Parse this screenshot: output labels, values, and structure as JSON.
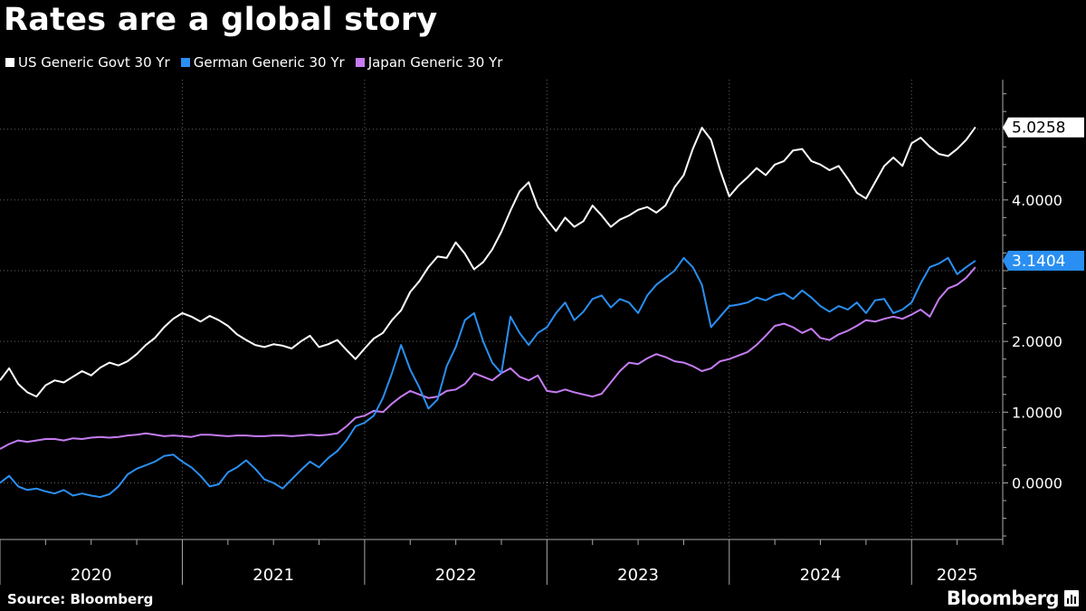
{
  "title": "Rates are a global story",
  "source": "Source: Bloomberg",
  "brand": "Bloomberg",
  "legend": [
    {
      "label": "US Generic Govt 30 Yr",
      "color": "#ffffff"
    },
    {
      "label": "German Generic 30 Yr",
      "color": "#2a8ff2"
    },
    {
      "label": "Japan Generic 30 Yr",
      "color": "#c57cf2"
    }
  ],
  "chart_data": {
    "type": "line",
    "title": "Rates are a global story",
    "xlabel": "",
    "ylabel": "",
    "xlim": [
      2020.0,
      2025.5
    ],
    "ylim": [
      -0.8,
      5.7
    ],
    "x_ticks": [
      "2020",
      "2021",
      "2022",
      "2023",
      "2024",
      "2025"
    ],
    "y_ticks": [
      "0.0000",
      "1.0000",
      "2.0000",
      "4.0000"
    ],
    "y_tick_values": [
      0,
      1,
      2,
      4
    ],
    "last_value_labels": [
      {
        "series": "US Generic Govt 30 Yr",
        "value": 5.0258,
        "text": "5.0258"
      },
      {
        "series": "German Generic 30 Yr",
        "value": 3.1404,
        "text": "3.1404"
      }
    ],
    "grid": true,
    "series": [
      {
        "name": "US Generic Govt 30 Yr",
        "color": "#ffffff",
        "x": [
          2020.0,
          2020.05,
          2020.1,
          2020.15,
          2020.2,
          2020.25,
          2020.3,
          2020.35,
          2020.4,
          2020.45,
          2020.5,
          2020.55,
          2020.6,
          2020.65,
          2020.7,
          2020.75,
          2020.8,
          2020.85,
          2020.9,
          2020.95,
          2021.0,
          2021.05,
          2021.1,
          2021.15,
          2021.2,
          2021.25,
          2021.3,
          2021.35,
          2021.4,
          2021.45,
          2021.5,
          2021.55,
          2021.6,
          2021.65,
          2021.7,
          2021.75,
          2021.8,
          2021.85,
          2021.9,
          2021.95,
          2022.0,
          2022.05,
          2022.1,
          2022.15,
          2022.2,
          2022.25,
          2022.3,
          2022.35,
          2022.4,
          2022.45,
          2022.5,
          2022.55,
          2022.6,
          2022.65,
          2022.7,
          2022.75,
          2022.8,
          2022.85,
          2022.9,
          2022.95,
          2023.0,
          2023.05,
          2023.1,
          2023.15,
          2023.2,
          2023.25,
          2023.3,
          2023.35,
          2023.4,
          2023.45,
          2023.5,
          2023.55,
          2023.6,
          2023.65,
          2023.7,
          2023.75,
          2023.8,
          2023.85,
          2023.9,
          2023.95,
          2024.0,
          2024.05,
          2024.1,
          2024.15,
          2024.2,
          2024.25,
          2024.3,
          2024.35,
          2024.4,
          2024.45,
          2024.5,
          2024.55,
          2024.6,
          2024.65,
          2024.7,
          2024.75,
          2024.8,
          2024.85,
          2024.9,
          2024.95,
          2025.0,
          2025.05,
          2025.1,
          2025.15,
          2025.2,
          2025.25,
          2025.3,
          2025.35
        ],
        "y": [
          1.45,
          1.62,
          1.4,
          1.28,
          1.22,
          1.38,
          1.45,
          1.42,
          1.5,
          1.58,
          1.52,
          1.63,
          1.7,
          1.66,
          1.72,
          1.82,
          1.95,
          2.05,
          2.2,
          2.32,
          2.4,
          2.35,
          2.28,
          2.36,
          2.3,
          2.22,
          2.1,
          2.02,
          1.95,
          1.92,
          1.96,
          1.94,
          1.9,
          2.0,
          2.08,
          1.92,
          1.96,
          2.02,
          1.88,
          1.75,
          1.9,
          2.04,
          2.12,
          2.3,
          2.44,
          2.7,
          2.85,
          3.05,
          3.2,
          3.18,
          3.4,
          3.24,
          3.02,
          3.12,
          3.3,
          3.55,
          3.85,
          4.12,
          4.25,
          3.9,
          3.72,
          3.56,
          3.75,
          3.62,
          3.7,
          3.92,
          3.78,
          3.62,
          3.72,
          3.78,
          3.86,
          3.9,
          3.82,
          3.92,
          4.18,
          4.35,
          4.72,
          5.02,
          4.85,
          4.42,
          4.05,
          4.2,
          4.32,
          4.45,
          4.35,
          4.5,
          4.55,
          4.7,
          4.72,
          4.55,
          4.5,
          4.42,
          4.48,
          4.3,
          4.1,
          4.02,
          4.25,
          4.48,
          4.6,
          4.48,
          4.8,
          4.88,
          4.75,
          4.65,
          4.62,
          4.72,
          4.85,
          5.03
        ]
      },
      {
        "name": "German Generic 30 Yr",
        "color": "#2a8ff2",
        "x": [
          2020.0,
          2020.05,
          2020.1,
          2020.15,
          2020.2,
          2020.25,
          2020.3,
          2020.35,
          2020.4,
          2020.45,
          2020.5,
          2020.55,
          2020.6,
          2020.65,
          2020.7,
          2020.75,
          2020.8,
          2020.85,
          2020.9,
          2020.95,
          2021.0,
          2021.05,
          2021.1,
          2021.15,
          2021.2,
          2021.25,
          2021.3,
          2021.35,
          2021.4,
          2021.45,
          2021.5,
          2021.55,
          2021.6,
          2021.65,
          2021.7,
          2021.75,
          2021.8,
          2021.85,
          2021.9,
          2021.95,
          2022.0,
          2022.05,
          2022.1,
          2022.15,
          2022.2,
          2022.25,
          2022.3,
          2022.35,
          2022.4,
          2022.45,
          2022.5,
          2022.55,
          2022.6,
          2022.65,
          2022.7,
          2022.75,
          2022.8,
          2022.85,
          2022.9,
          2022.95,
          2023.0,
          2023.05,
          2023.1,
          2023.15,
          2023.2,
          2023.25,
          2023.3,
          2023.35,
          2023.4,
          2023.45,
          2023.5,
          2023.55,
          2023.6,
          2023.65,
          2023.7,
          2023.75,
          2023.8,
          2023.85,
          2023.9,
          2023.95,
          2024.0,
          2024.05,
          2024.1,
          2024.15,
          2024.2,
          2024.25,
          2024.3,
          2024.35,
          2024.4,
          2024.45,
          2024.5,
          2024.55,
          2024.6,
          2024.65,
          2024.7,
          2024.75,
          2024.8,
          2024.85,
          2024.9,
          2024.95,
          2025.0,
          2025.05,
          2025.1,
          2025.15,
          2025.2,
          2025.25,
          2025.3,
          2025.35
        ],
        "y": [
          0.0,
          0.1,
          -0.05,
          -0.1,
          -0.08,
          -0.12,
          -0.15,
          -0.1,
          -0.18,
          -0.15,
          -0.18,
          -0.2,
          -0.16,
          -0.05,
          0.12,
          0.2,
          0.25,
          0.3,
          0.38,
          0.4,
          0.3,
          0.22,
          0.1,
          -0.05,
          -0.02,
          0.15,
          0.22,
          0.32,
          0.2,
          0.05,
          0.0,
          -0.08,
          0.05,
          0.18,
          0.3,
          0.22,
          0.35,
          0.45,
          0.6,
          0.8,
          0.85,
          0.95,
          1.2,
          1.55,
          1.95,
          1.6,
          1.35,
          1.05,
          1.18,
          1.65,
          1.92,
          2.3,
          2.4,
          2.0,
          1.7,
          1.55,
          2.35,
          2.12,
          1.95,
          2.12,
          2.2,
          2.4,
          2.55,
          2.3,
          2.42,
          2.6,
          2.65,
          2.48,
          2.6,
          2.55,
          2.4,
          2.65,
          2.8,
          2.9,
          3.0,
          3.18,
          3.05,
          2.8,
          2.2,
          2.35,
          2.5,
          2.52,
          2.55,
          2.62,
          2.58,
          2.65,
          2.68,
          2.6,
          2.72,
          2.62,
          2.5,
          2.42,
          2.5,
          2.45,
          2.55,
          2.4,
          2.58,
          2.6,
          2.4,
          2.45,
          2.55,
          2.82,
          3.05,
          3.1,
          3.18,
          2.95,
          3.05,
          3.14
        ]
      },
      {
        "name": "Japan Generic 30 Yr",
        "color": "#c57cf2",
        "x": [
          2020.0,
          2020.05,
          2020.1,
          2020.15,
          2020.2,
          2020.25,
          2020.3,
          2020.35,
          2020.4,
          2020.45,
          2020.5,
          2020.55,
          2020.6,
          2020.65,
          2020.7,
          2020.75,
          2020.8,
          2020.85,
          2020.9,
          2020.95,
          2021.0,
          2021.05,
          2021.1,
          2021.15,
          2021.2,
          2021.25,
          2021.3,
          2021.35,
          2021.4,
          2021.45,
          2021.5,
          2021.55,
          2021.6,
          2021.65,
          2021.7,
          2021.75,
          2021.8,
          2021.85,
          2021.9,
          2021.95,
          2022.0,
          2022.05,
          2022.1,
          2022.15,
          2022.2,
          2022.25,
          2022.3,
          2022.35,
          2022.4,
          2022.45,
          2022.5,
          2022.55,
          2022.6,
          2022.65,
          2022.7,
          2022.75,
          2022.8,
          2022.85,
          2022.9,
          2022.95,
          2023.0,
          2023.05,
          2023.1,
          2023.15,
          2023.2,
          2023.25,
          2023.3,
          2023.35,
          2023.4,
          2023.45,
          2023.5,
          2023.55,
          2023.6,
          2023.65,
          2023.7,
          2023.75,
          2023.8,
          2023.85,
          2023.9,
          2023.95,
          2024.0,
          2024.05,
          2024.1,
          2024.15,
          2024.2,
          2024.25,
          2024.3,
          2024.35,
          2024.4,
          2024.45,
          2024.5,
          2024.55,
          2024.6,
          2024.65,
          2024.7,
          2024.75,
          2024.8,
          2024.85,
          2024.9,
          2024.95,
          2025.0,
          2025.05,
          2025.1,
          2025.15,
          2025.2,
          2025.25,
          2025.3,
          2025.35
        ],
        "y": [
          0.48,
          0.55,
          0.6,
          0.58,
          0.6,
          0.62,
          0.62,
          0.6,
          0.63,
          0.62,
          0.64,
          0.65,
          0.64,
          0.65,
          0.67,
          0.68,
          0.7,
          0.68,
          0.66,
          0.67,
          0.66,
          0.65,
          0.68,
          0.68,
          0.67,
          0.66,
          0.67,
          0.67,
          0.66,
          0.66,
          0.67,
          0.67,
          0.66,
          0.67,
          0.68,
          0.67,
          0.68,
          0.7,
          0.8,
          0.92,
          0.95,
          1.02,
          1.0,
          1.12,
          1.22,
          1.3,
          1.25,
          1.2,
          1.22,
          1.3,
          1.32,
          1.4,
          1.55,
          1.5,
          1.45,
          1.55,
          1.62,
          1.5,
          1.45,
          1.52,
          1.3,
          1.28,
          1.32,
          1.28,
          1.25,
          1.22,
          1.26,
          1.42,
          1.58,
          1.7,
          1.68,
          1.76,
          1.82,
          1.78,
          1.72,
          1.7,
          1.65,
          1.58,
          1.62,
          1.72,
          1.75,
          1.8,
          1.85,
          1.95,
          2.08,
          2.22,
          2.25,
          2.2,
          2.12,
          2.18,
          2.05,
          2.02,
          2.1,
          2.15,
          2.22,
          2.3,
          2.28,
          2.32,
          2.35,
          2.32,
          2.38,
          2.45,
          2.35,
          2.6,
          2.75,
          2.8,
          2.9,
          3.05
        ]
      }
    ]
  }
}
